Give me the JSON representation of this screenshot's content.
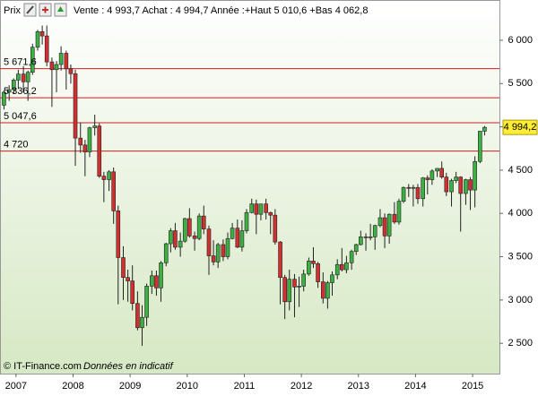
{
  "chart_data": {
    "type": "candlestick",
    "header": {
      "label": "Prix",
      "quote": "Vente : 4 993,7 Achat : 4 994,7  Année :+Haut 5 010,6 +Bas 4 062,8"
    },
    "footer": {
      "source": "© IT-Finance.com",
      "note": "Données en indicatif"
    },
    "up_color": "#3cb043",
    "down_color": "#d03030",
    "level_color": "#c82020",
    "xlim": [
      2006.72,
      2015.47
    ],
    "xticks": [
      2007,
      2008,
      2009,
      2010,
      2011,
      2012,
      2013,
      2014,
      2015
    ],
    "ylim": [
      2150,
      6465
    ],
    "yticks": [
      {
        "value": 2500,
        "label": "2 500"
      },
      {
        "value": 3000,
        "label": "3 000"
      },
      {
        "value": 3500,
        "label": "3 500"
      },
      {
        "value": 4000,
        "label": "4 000"
      },
      {
        "value": 4500,
        "label": "4 500"
      },
      {
        "value": 5000,
        "label": "5 000"
      },
      {
        "value": 5500,
        "label": "5 500"
      },
      {
        "value": 6000,
        "label": "6 000"
      }
    ],
    "levels": [
      {
        "value": 5671.6,
        "label": "5 671,6"
      },
      {
        "value": 5336.2,
        "label": "5 336,2"
      },
      {
        "value": 5047.6,
        "label": "5 047,6"
      },
      {
        "value": 4720,
        "label": "4 720"
      }
    ],
    "last": {
      "value": 4994.2,
      "label": "4 994,2"
    },
    "x": [
      2006.79,
      2006.88,
      2006.96,
      2007.04,
      2007.13,
      2007.21,
      2007.29,
      2007.38,
      2007.46,
      2007.54,
      2007.63,
      2007.71,
      2007.79,
      2007.88,
      2007.96,
      2008.04,
      2008.13,
      2008.21,
      2008.29,
      2008.38,
      2008.46,
      2008.54,
      2008.63,
      2008.71,
      2008.79,
      2008.88,
      2008.96,
      2009.04,
      2009.13,
      2009.21,
      2009.29,
      2009.38,
      2009.46,
      2009.54,
      2009.63,
      2009.71,
      2009.79,
      2009.88,
      2009.96,
      2010.04,
      2010.13,
      2010.21,
      2010.29,
      2010.38,
      2010.46,
      2010.54,
      2010.63,
      2010.71,
      2010.79,
      2010.88,
      2010.96,
      2011.04,
      2011.13,
      2011.21,
      2011.29,
      2011.38,
      2011.46,
      2011.54,
      2011.63,
      2011.71,
      2011.79,
      2011.88,
      2011.96,
      2012.04,
      2012.13,
      2012.21,
      2012.29,
      2012.38,
      2012.46,
      2012.54,
      2012.63,
      2012.71,
      2012.79,
      2012.88,
      2012.96,
      2013.04,
      2013.13,
      2013.21,
      2013.29,
      2013.38,
      2013.46,
      2013.54,
      2013.63,
      2013.71,
      2013.79,
      2013.88,
      2013.96,
      2014.04,
      2014.13,
      2014.21,
      2014.29,
      2014.38,
      2014.46,
      2014.54,
      2014.63,
      2014.71,
      2014.79,
      2014.88,
      2014.96,
      2015.04,
      2015.13,
      2015.21
    ],
    "open": [
      5250,
      5400,
      5430,
      5540,
      5610,
      5520,
      5630,
      5920,
      6100,
      6050,
      5750,
      5660,
      5720,
      5850,
      5670,
      5614,
      4870,
      4790,
      4710,
      4990,
      5010,
      4430,
      4390,
      4480,
      4030,
      3490,
      3260,
      3220,
      2960,
      2680,
      2800,
      3160,
      3280,
      3140,
      3430,
      3650,
      3800,
      3610,
      3680,
      3940,
      3740,
      3710,
      3970,
      3820,
      3510,
      3440,
      3640,
      3500,
      3710,
      3830,
      3610,
      3800,
      4010,
      4110,
      3990,
      4110,
      4010,
      3980,
      3670,
      3260,
      2980,
      3240,
      3150,
      3160,
      3300,
      3450,
      3420,
      3210,
      3020,
      3200,
      3290,
      3410,
      3350,
      3430,
      3560,
      3640,
      3730,
      3720,
      3730,
      3860,
      3950,
      3740,
      3990,
      3900,
      4140,
      4300,
      4290,
      4300,
      4170,
      4410,
      4390,
      4490,
      4520,
      4420,
      4250,
      4380,
      4420,
      4230,
      4390,
      4270,
      4600,
      4950
    ],
    "high": [
      5420,
      5480,
      5560,
      5660,
      5700,
      5650,
      5960,
      6120,
      6170,
      6170,
      5800,
      5760,
      5930,
      5880,
      5720,
      5660,
      5050,
      4850,
      5000,
      5140,
      5040,
      4480,
      4500,
      4530,
      4090,
      3620,
      3350,
      3400,
      3100,
      2940,
      3190,
      3340,
      3340,
      3450,
      3660,
      3830,
      3890,
      3780,
      3950,
      4060,
      3790,
      4000,
      4090,
      3860,
      3690,
      3660,
      3700,
      3780,
      3890,
      3930,
      3920,
      4050,
      4170,
      4160,
      4110,
      4170,
      4020,
      4050,
      3680,
      3290,
      3350,
      3300,
      3270,
      3350,
      3490,
      3610,
      3440,
      3320,
      3220,
      3330,
      3470,
      3600,
      3510,
      3580,
      3650,
      3800,
      3770,
      3880,
      3870,
      4050,
      4000,
      4000,
      4130,
      4170,
      4310,
      4340,
      4330,
      4340,
      4420,
      4440,
      4510,
      4520,
      4600,
      4470,
      4400,
      4480,
      4430,
      4400,
      4420,
      4660,
      4950,
      5010
    ],
    "low": [
      5200,
      5300,
      5380,
      5450,
      5400,
      5300,
      5600,
      5880,
      5950,
      5700,
      5230,
      5400,
      5650,
      5430,
      5500,
      4550,
      4700,
      4430,
      4650,
      4900,
      4410,
      4130,
      4260,
      3880,
      2950,
      3000,
      2980,
      2880,
      2650,
      2470,
      2700,
      3070,
      3050,
      2980,
      3390,
      3550,
      3580,
      3500,
      3660,
      3720,
      3570,
      3690,
      3760,
      3290,
      3400,
      3370,
      3450,
      3470,
      3700,
      3600,
      3560,
      3770,
      4000,
      3760,
      3920,
      3930,
      3760,
      3640,
      2950,
      2780,
      2880,
      2800,
      2920,
      3100,
      3280,
      3370,
      3140,
      2960,
      2900,
      3050,
      3240,
      3330,
      3310,
      3350,
      3520,
      3630,
      3570,
      3690,
      3580,
      3840,
      3600,
      3650,
      3880,
      3870,
      4120,
      4190,
      4080,
      4110,
      4080,
      4220,
      4330,
      4420,
      4400,
      4200,
      4080,
      4350,
      3790,
      4100,
      4040,
      4070,
      4580,
      4900
    ],
    "close": [
      5400,
      5430,
      5540,
      5610,
      5520,
      5630,
      5920,
      6100,
      6050,
      5750,
      5660,
      5720,
      5850,
      5670,
      5614,
      4870,
      4790,
      4710,
      4990,
      5010,
      4430,
      4390,
      4480,
      4030,
      3490,
      3260,
      3220,
      2960,
      2680,
      2800,
      3160,
      3280,
      3140,
      3430,
      3650,
      3800,
      3610,
      3680,
      3940,
      3740,
      3710,
      3970,
      3820,
      3510,
      3440,
      3640,
      3500,
      3710,
      3830,
      3610,
      3800,
      4010,
      4110,
      3990,
      4110,
      4010,
      3980,
      3670,
      3260,
      2980,
      3240,
      3150,
      3160,
      3300,
      3450,
      3420,
      3210,
      3020,
      3200,
      3290,
      3410,
      3350,
      3430,
      3560,
      3640,
      3730,
      3720,
      3730,
      3860,
      3950,
      3740,
      3990,
      3900,
      4140,
      4300,
      4290,
      4300,
      4170,
      4410,
      4390,
      4490,
      4520,
      4420,
      4250,
      4380,
      4420,
      4230,
      4390,
      4270,
      4600,
      4950,
      4994.2
    ]
  }
}
